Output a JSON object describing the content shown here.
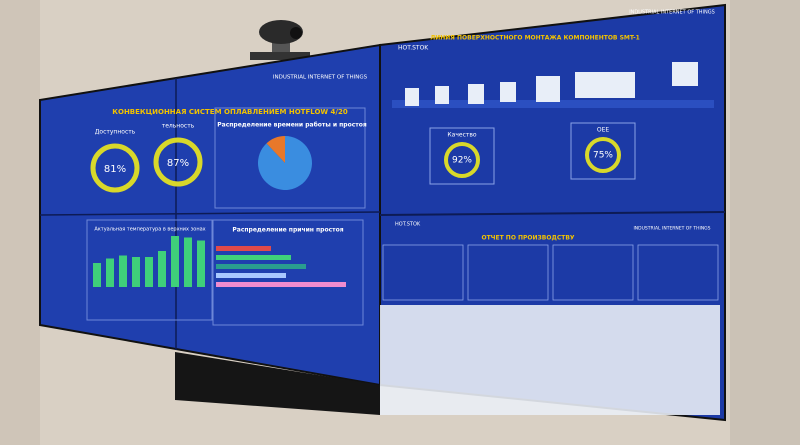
{
  "left_screen": {
    "header": "INDUSTRIAL INTERNET OF THINGS",
    "title": "КОНВЕКЦИОННАЯ СИСТЕМ  ОПЛАВЛЕНИЕМ HOTFLOW 4/20",
    "gauges": [
      {
        "label": "Доступность",
        "value": "81%"
      },
      {
        "label": "тельность",
        "value": "87%"
      }
    ],
    "pie": {
      "title": "Распределение времени работы и простоя",
      "values": [
        88,
        12
      ],
      "colors": [
        "#3a8de0",
        "#e8782a"
      ]
    },
    "temperature_chart": {
      "title": "Актуальная температура в верхних зонах",
      "values": [
        16,
        19,
        21,
        20,
        20,
        24,
        34,
        33,
        31
      ],
      "color": "#3fd07a"
    },
    "downtime_chart": {
      "title": "Распределение причин простоя",
      "values": [
        55,
        75,
        90,
        70,
        130
      ],
      "colors": [
        "#e04a4a",
        "#3fd07a",
        "#2a9d8f",
        "#a8c8ff",
        "#f08ccf"
      ]
    }
  },
  "right_screen": {
    "header": "INDUSTRIAL INTERNET OF THINGS",
    "logo": "HOT.STOK",
    "title": "ЛИНИЯ ПОВЕРХНОСТНОГО МОНТАЖА КОМПОНЕНТОВ SMT-1",
    "gauges": [
      {
        "label": "Качество",
        "value": "92%"
      },
      {
        "label": "OEE",
        "value": "75%"
      }
    ],
    "report": {
      "logo": "HOT.STOK",
      "header": "INDUSTRIAL INTERNET OF THINGS",
      "title": "ОТЧЕТ ПО ПРОИЗВОДСТВУ"
    }
  }
}
